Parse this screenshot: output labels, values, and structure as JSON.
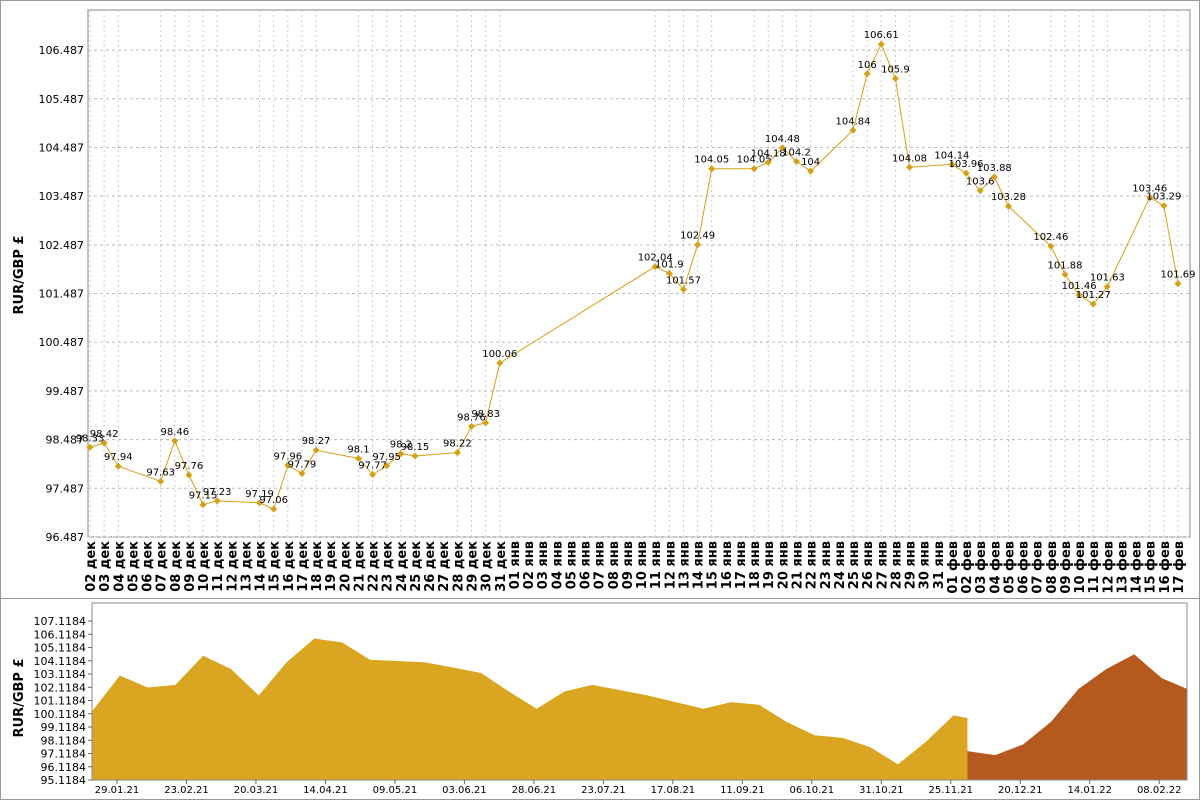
{
  "chart_data": [
    {
      "type": "line",
      "ylabel": "RUR/GBP £",
      "color": "#d4a017",
      "grid": true,
      "ylim": [
        96.487,
        107.31
      ],
      "yticks": [
        96.487,
        97.487,
        98.487,
        99.487,
        100.487,
        101.487,
        102.487,
        103.487,
        104.487,
        105.487,
        106.487
      ],
      "xticks": [
        "02 дек",
        "03 дек",
        "04 дек",
        "05 дек",
        "06 дек",
        "07 дек",
        "08 дек",
        "09 дек",
        "10 дек",
        "11 дек",
        "12 дек",
        "13 дек",
        "14 дек",
        "15 дек",
        "16 дек",
        "17 дек",
        "18 дек",
        "19 дек",
        "20 дек",
        "21 дек",
        "22 дек",
        "23 дек",
        "24 дек",
        "25 дек",
        "26 дек",
        "27 дек",
        "28 дек",
        "29 дек",
        "30 дек",
        "31 дек",
        "01 янв",
        "02 янв",
        "03 янв",
        "04 янв",
        "05 янв",
        "06 янв",
        "07 янв",
        "08 янв",
        "09 янв",
        "10 янв",
        "11 янв",
        "12 янв",
        "13 янв",
        "14 янв",
        "15 янв",
        "16 янв",
        "17 янв",
        "18 янв",
        "19 янв",
        "20 янв",
        "21 янв",
        "22 янв",
        "23 янв",
        "24 янв",
        "25 янв",
        "26 янв",
        "27 янв",
        "28 янв",
        "29 янв",
        "30 янв",
        "31 янв",
        "01 фев",
        "02 фев",
        "03 фев",
        "04 фев",
        "05 фев",
        "06 фев",
        "07 фев",
        "08 фев",
        "09 фев",
        "10 фев",
        "11 фев",
        "12 фев",
        "13 фев",
        "14 фев",
        "15 фев",
        "16 фев",
        "17 фев"
      ],
      "x": [
        "02 дек",
        "03 дек",
        "04 дек",
        "07 дек",
        "08 дек",
        "09 дек",
        "10 дек",
        "11 дек",
        "14 дек",
        "15 дек",
        "16 дек",
        "17 дек",
        "18 дек",
        "21 дек",
        "22 дек",
        "23 дек",
        "24 дек",
        "25 дек",
        "28 дек",
        "29 дек",
        "30 дек",
        "31 дек",
        "11 янв",
        "12 янв",
        "13 янв",
        "14 янв",
        "15 янв",
        "18 янв",
        "19 янв",
        "20 янв",
        "21 янв",
        "22 янв",
        "25 янв",
        "26 янв",
        "27 янв",
        "28 янв",
        "29 янв",
        "01 фев",
        "02 фев",
        "03 фев",
        "04 фев",
        "05 фев",
        "08 фев",
        "09 фев",
        "10 фев",
        "11 фев",
        "12 фев",
        "15 фев",
        "16 фев",
        "17 фев"
      ],
      "values": [
        98.33,
        98.42,
        97.94,
        97.63,
        98.46,
        97.76,
        97.15,
        97.23,
        97.19,
        97.06,
        97.96,
        97.79,
        98.27,
        98.1,
        97.77,
        97.95,
        98.2,
        98.15,
        98.22,
        98.76,
        98.83,
        100.06,
        102.04,
        101.9,
        101.57,
        102.49,
        104.05,
        104.05,
        104.18,
        104.48,
        104.2,
        104,
        104.84,
        106,
        106.61,
        105.9,
        104.08,
        104.14,
        103.96,
        103.6,
        103.88,
        103.28,
        102.46,
        101.88,
        101.46,
        101.27,
        101.63,
        103.46,
        103.29,
        101.69
      ]
    },
    {
      "type": "area",
      "ylabel": "RUR/GBP £",
      "ylim": [
        95.1184,
        108.48
      ],
      "xlim": [
        "20.01.21",
        "18.02.22"
      ],
      "yticks": [
        95.1184,
        96.1184,
        97.1184,
        98.1184,
        99.1184,
        100.1184,
        101.1184,
        102.1184,
        103.1184,
        104.1184,
        105.1184,
        106.1184,
        107.1184
      ],
      "xticks": [
        "29.01.21",
        "23.02.21",
        "20.03.21",
        "14.04.21",
        "09.05.21",
        "03.06.21",
        "28.06.21",
        "23.07.21",
        "17.08.21",
        "11.09.21",
        "06.10.21",
        "31.10.21",
        "25.11.21",
        "20.12.21",
        "14.01.22",
        "08.02.22"
      ],
      "series": [
        {
          "color": "#daa520",
          "x": [
            "20.01.21",
            "30.01.21",
            "09.02.21",
            "19.02.21",
            "01.03.21",
            "11.03.21",
            "21.03.21",
            "31.03.21",
            "10.04.21",
            "20.04.21",
            "30.04.21",
            "10.05.21",
            "20.05.21",
            "30.05.21",
            "09.06.21",
            "19.06.21",
            "29.06.21",
            "09.07.21",
            "19.07.21",
            "29.07.21",
            "08.08.21",
            "18.08.21",
            "28.08.21",
            "07.09.21",
            "17.09.21",
            "27.09.21",
            "07.10.21",
            "17.10.21",
            "27.10.21",
            "06.11.21",
            "16.11.21",
            "26.11.21",
            "01.12.21"
          ],
          "values": [
            100.3,
            103.0,
            102.1,
            102.3,
            104.5,
            103.5,
            101.5,
            104.0,
            105.8,
            105.5,
            104.2,
            104.1,
            104.0,
            103.6,
            103.2,
            101.8,
            100.5,
            101.8,
            102.3,
            101.9,
            101.5,
            101.0,
            100.5,
            101.0,
            100.8,
            99.5,
            98.5,
            98.3,
            97.6,
            96.3,
            98.0,
            100.0,
            99.8
          ]
        },
        {
          "color": "#b5591f",
          "x": [
            "01.12.21",
            "11.12.21",
            "21.12.21",
            "31.12.21",
            "10.01.22",
            "20.01.22",
            "30.01.22",
            "09.02.22",
            "18.02.22"
          ],
          "values": [
            97.3,
            97.0,
            97.8,
            99.5,
            102.0,
            103.5,
            104.6,
            102.8,
            102.0
          ]
        }
      ]
    }
  ]
}
